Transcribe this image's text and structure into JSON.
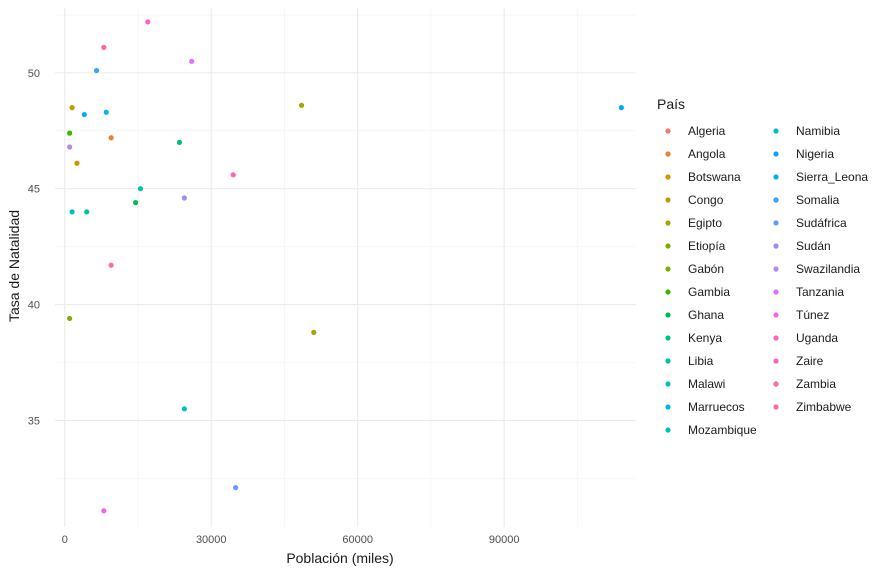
{
  "chart_data": {
    "type": "scatter",
    "title": "",
    "xlabel": "Población (miles)",
    "ylabel": "Tasa de Natalidad",
    "xlim": [
      -2000,
      117000
    ],
    "ylim": [
      30.4,
      52.8
    ],
    "xticks": [
      0,
      30000,
      60000,
      90000
    ],
    "xtick_labels": [
      "0",
      "30000",
      "60000",
      "90000"
    ],
    "yticks": [
      35,
      40,
      45,
      50
    ],
    "ytick_labels": [
      "35",
      "40",
      "45",
      "50"
    ],
    "grid": true,
    "legend_title": "País",
    "legend_position": "right",
    "series": [
      {
        "name": "Algeria",
        "color": "#F8766D",
        "points": []
      },
      {
        "name": "Angola",
        "color": "#EA8331",
        "points": [
          [
            9500,
            47.2
          ]
        ]
      },
      {
        "name": "Botswana",
        "color": "#D89000",
        "points": [
          [
            2500,
            46.1
          ]
        ]
      },
      {
        "name": "Congo",
        "color": "#C09B00",
        "points": [
          [
            1500,
            48.5
          ]
        ]
      },
      {
        "name": "Egipto",
        "color": "#A3A500",
        "points": [
          [
            48500,
            48.6
          ],
          [
            51000,
            38.8
          ]
        ]
      },
      {
        "name": "Etiopía",
        "color": "#7CAE00",
        "points": []
      },
      {
        "name": "Gabón",
        "color": "#7CAE00",
        "points": [
          [
            1000,
            39.4
          ]
        ]
      },
      {
        "name": "Gambia",
        "color": "#39B600",
        "points": [
          [
            1000,
            47.4
          ]
        ]
      },
      {
        "name": "Ghana",
        "color": "#00BB4E",
        "points": [
          [
            14500,
            44.4
          ]
        ]
      },
      {
        "name": "Kenya",
        "color": "#00BF7D",
        "points": [
          [
            23500,
            47.0
          ]
        ]
      },
      {
        "name": "Libia",
        "color": "#00C1A3",
        "points": [
          [
            4500,
            44.0
          ]
        ]
      },
      {
        "name": "Malawi",
        "color": "#00BFC4",
        "points": [
          [
            24500,
            35.5
          ]
        ]
      },
      {
        "name": "Marruecos",
        "color": "#00BAE0",
        "points": [
          [
            8500,
            48.3
          ]
        ]
      },
      {
        "name": "Mozambique",
        "color": "#00C0B8",
        "points": [
          [
            15500,
            45.0
          ]
        ]
      },
      {
        "name": "Namibia",
        "color": "#00BDD0",
        "points": [
          [
            1500,
            44.0
          ]
        ]
      },
      {
        "name": "Nigeria",
        "color": "#00A9FF",
        "points": [
          [
            114000,
            48.5
          ]
        ]
      },
      {
        "name": "Sierra_Leona",
        "color": "#00B0F6",
        "points": [
          [
            4000,
            48.2
          ]
        ]
      },
      {
        "name": "Somalia",
        "color": "#35A2FF",
        "points": [
          [
            6500,
            50.1
          ]
        ]
      },
      {
        "name": "Sudáfrica",
        "color": "#619CFF",
        "points": [
          [
            35000,
            32.1
          ]
        ]
      },
      {
        "name": "Sudán",
        "color": "#9590FF",
        "points": [
          [
            24500,
            44.6
          ]
        ]
      },
      {
        "name": "Swazilandia",
        "color": "#B983FF",
        "points": [
          [
            1000,
            46.8
          ]
        ]
      },
      {
        "name": "Tanzania",
        "color": "#DE71F9",
        "points": [
          [
            26000,
            50.5
          ]
        ]
      },
      {
        "name": "Túnez",
        "color": "#F365E6",
        "points": [
          [
            8000,
            31.1
          ]
        ]
      },
      {
        "name": "Uganda",
        "color": "#FF61C3",
        "points": [
          [
            17000,
            52.2
          ]
        ]
      },
      {
        "name": "Zaire",
        "color": "#FF62BC",
        "points": [
          [
            34500,
            45.6
          ]
        ]
      },
      {
        "name": "Zambia",
        "color": "#FF67A4",
        "points": [
          [
            8000,
            51.1
          ]
        ]
      },
      {
        "name": "Zimbabwe",
        "color": "#FF6C91",
        "points": [
          [
            9500,
            41.7
          ]
        ]
      }
    ]
  }
}
